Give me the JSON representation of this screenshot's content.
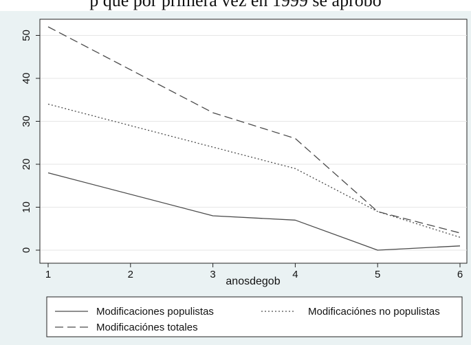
{
  "caption": "p que por primera vez en 1999 se aprobó",
  "chart_data": {
    "type": "line",
    "xlabel": "anosdegob",
    "ylabel": "",
    "x": [
      1,
      2,
      3,
      4,
      5,
      6
    ],
    "xlim": [
      1,
      6
    ],
    "ylim": [
      0,
      52
    ],
    "xticks": [
      "1",
      "2",
      "3",
      "4",
      "5",
      "6"
    ],
    "yticks": [
      "0",
      "10",
      "20",
      "30",
      "40",
      "50"
    ],
    "grid": "horizontal",
    "legend_position": "bottom",
    "series": [
      {
        "name": "Modificaciones populistas",
        "style": "solid",
        "color": "#4a4a4a",
        "points": [
          [
            1,
            18
          ],
          [
            3,
            8
          ],
          [
            4,
            7
          ],
          [
            5,
            0
          ],
          [
            6,
            1
          ]
        ]
      },
      {
        "name": "Modificaciónes no populistas",
        "style": "dotted",
        "color": "#4a4a4a",
        "points": [
          [
            1,
            34
          ],
          [
            4,
            19
          ],
          [
            5,
            9
          ],
          [
            6,
            3
          ]
        ]
      },
      {
        "name": "Modificaciónes totales",
        "style": "dashed",
        "color": "#4a4a4a",
        "points": [
          [
            1,
            52
          ],
          [
            3,
            32
          ],
          [
            4,
            26
          ],
          [
            5,
            9
          ],
          [
            6,
            4
          ]
        ]
      }
    ]
  }
}
